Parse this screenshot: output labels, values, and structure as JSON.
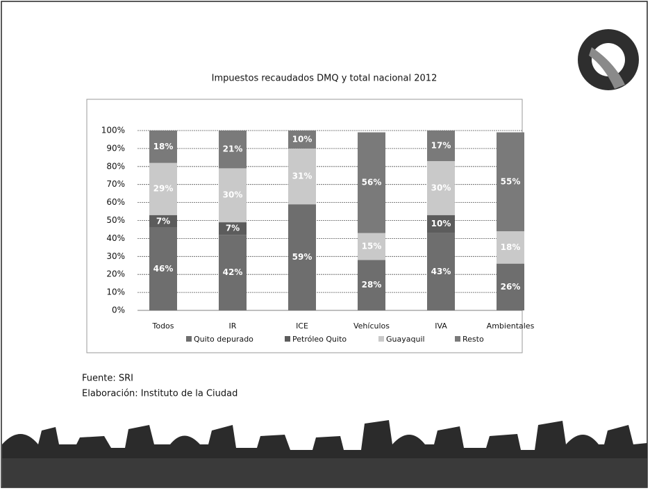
{
  "chart_data": {
    "type": "stacked-bar",
    "title": "Impuestos recaudados DMQ y total nacional 2012",
    "categories": [
      "Todos",
      "IR",
      "ICE",
      "Vehículos",
      "IVA",
      "Ambientales"
    ],
    "series": [
      {
        "name": "Quito depurado",
        "color": "#6e6e6e",
        "values": [
          46,
          42,
          59,
          28,
          43,
          26
        ],
        "value_labels": [
          "46%",
          "42%",
          "59%",
          "28%",
          "43%",
          "26%"
        ]
      },
      {
        "name": "Petróleo Quito",
        "color": "#5c5c5c",
        "values": [
          7,
          7,
          null,
          null,
          10,
          null
        ],
        "value_labels": [
          "7%",
          "7%",
          null,
          null,
          "10%",
          null
        ]
      },
      {
        "name": "Guayaquil",
        "color": "#c9c9c9",
        "values": [
          29,
          30,
          31,
          15,
          30,
          18
        ],
        "value_labels": [
          "29%",
          "30%",
          "31%",
          "15%",
          "30%",
          "18%"
        ]
      },
      {
        "name": "Resto",
        "color": "#7a7a7a",
        "values": [
          18,
          21,
          10,
          56,
          17,
          55
        ],
        "value_labels": [
          "18%",
          "21%",
          "10%",
          "56%",
          "17%",
          "55%"
        ]
      }
    ],
    "ylim": [
      0,
      100
    ],
    "yticks": [
      {
        "value": 0,
        "label": "0%"
      },
      {
        "value": 10,
        "label": "10%"
      },
      {
        "value": 20,
        "label": "20%"
      },
      {
        "value": 30,
        "label": "30%"
      },
      {
        "value": 40,
        "label": "40%"
      },
      {
        "value": 50,
        "label": "50%"
      },
      {
        "value": 60,
        "label": "60%"
      },
      {
        "value": 70,
        "label": "70%"
      },
      {
        "value": 80,
        "label": "80%"
      },
      {
        "value": 90,
        "label": "90%"
      },
      {
        "value": 100,
        "label": "100%"
      }
    ],
    "grid": true
  },
  "footer": {
    "source": "Fuente: SRI",
    "credit": "Elaboración: Instituto de la Ciudad"
  }
}
